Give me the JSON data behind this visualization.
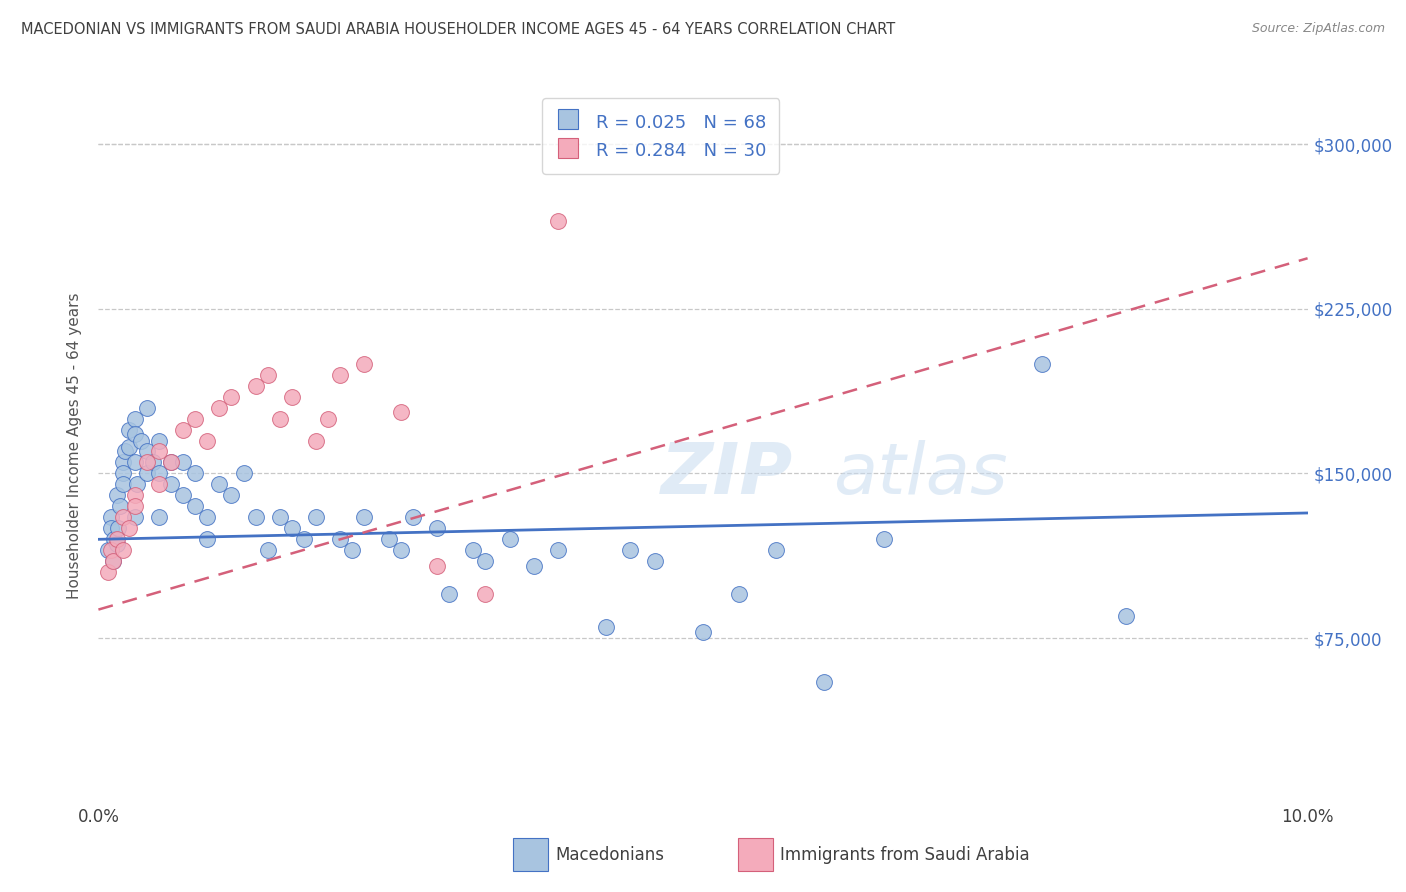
{
  "title": "MACEDONIAN VS IMMIGRANTS FROM SAUDI ARABIA HOUSEHOLDER INCOME AGES 45 - 64 YEARS CORRELATION CHART",
  "source": "Source: ZipAtlas.com",
  "ylabel": "Householder Income Ages 45 - 64 years",
  "xlim": [
    0.0,
    0.1
  ],
  "ylim": [
    0,
    325000
  ],
  "yticks": [
    0,
    75000,
    150000,
    225000,
    300000
  ],
  "ytick_labels": [
    "",
    "$75,000",
    "$150,000",
    "$225,000",
    "$300,000"
  ],
  "xticks": [
    0.0,
    0.02,
    0.04,
    0.06,
    0.08,
    0.1
  ],
  "legend_label1": "Macedonians",
  "legend_label2": "Immigrants from Saudi Arabia",
  "R1": 0.025,
  "N1": 68,
  "R2": 0.284,
  "N2": 30,
  "color_blue": "#A8C4E0",
  "color_pink": "#F4ABBB",
  "line_color_blue": "#4472C4",
  "line_color_pink": "#D4607A",
  "background_color": "#FFFFFF",
  "grid_color": "#C8C8C8",
  "title_color": "#404040",
  "right_label_color": "#4472C4",
  "mac_x": [
    0.0008,
    0.001,
    0.001,
    0.0012,
    0.0013,
    0.0015,
    0.0015,
    0.0016,
    0.0018,
    0.002,
    0.002,
    0.002,
    0.0022,
    0.0025,
    0.0025,
    0.003,
    0.003,
    0.003,
    0.003,
    0.0032,
    0.0035,
    0.004,
    0.004,
    0.004,
    0.0045,
    0.005,
    0.005,
    0.005,
    0.006,
    0.006,
    0.007,
    0.007,
    0.008,
    0.008,
    0.009,
    0.009,
    0.01,
    0.011,
    0.012,
    0.013,
    0.014,
    0.015,
    0.016,
    0.017,
    0.018,
    0.02,
    0.021,
    0.022,
    0.024,
    0.025,
    0.026,
    0.028,
    0.029,
    0.031,
    0.032,
    0.034,
    0.036,
    0.038,
    0.042,
    0.044,
    0.046,
    0.05,
    0.053,
    0.056,
    0.06,
    0.065,
    0.078,
    0.085
  ],
  "mac_y": [
    115000,
    130000,
    125000,
    110000,
    120000,
    118000,
    140000,
    125000,
    135000,
    155000,
    150000,
    145000,
    160000,
    170000,
    162000,
    175000,
    168000,
    155000,
    130000,
    145000,
    165000,
    180000,
    160000,
    150000,
    155000,
    165000,
    150000,
    130000,
    145000,
    155000,
    155000,
    140000,
    150000,
    135000,
    130000,
    120000,
    145000,
    140000,
    150000,
    130000,
    115000,
    130000,
    125000,
    120000,
    130000,
    120000,
    115000,
    130000,
    120000,
    115000,
    130000,
    125000,
    95000,
    115000,
    110000,
    120000,
    108000,
    115000,
    80000,
    115000,
    110000,
    78000,
    95000,
    115000,
    55000,
    120000,
    200000,
    85000
  ],
  "sau_x": [
    0.0008,
    0.001,
    0.0012,
    0.0015,
    0.002,
    0.002,
    0.0025,
    0.003,
    0.003,
    0.004,
    0.005,
    0.005,
    0.006,
    0.007,
    0.008,
    0.009,
    0.01,
    0.011,
    0.013,
    0.014,
    0.015,
    0.016,
    0.018,
    0.019,
    0.02,
    0.022,
    0.025,
    0.028,
    0.032,
    0.038
  ],
  "sau_y": [
    105000,
    115000,
    110000,
    120000,
    130000,
    115000,
    125000,
    140000,
    135000,
    155000,
    160000,
    145000,
    155000,
    170000,
    175000,
    165000,
    180000,
    185000,
    190000,
    195000,
    175000,
    185000,
    165000,
    175000,
    195000,
    200000,
    178000,
    108000,
    95000,
    265000
  ],
  "blue_line_x": [
    0.0,
    0.1
  ],
  "blue_line_y": [
    120000,
    132000
  ],
  "pink_line_x": [
    0.0,
    0.1
  ],
  "pink_line_y": [
    88000,
    248000
  ]
}
